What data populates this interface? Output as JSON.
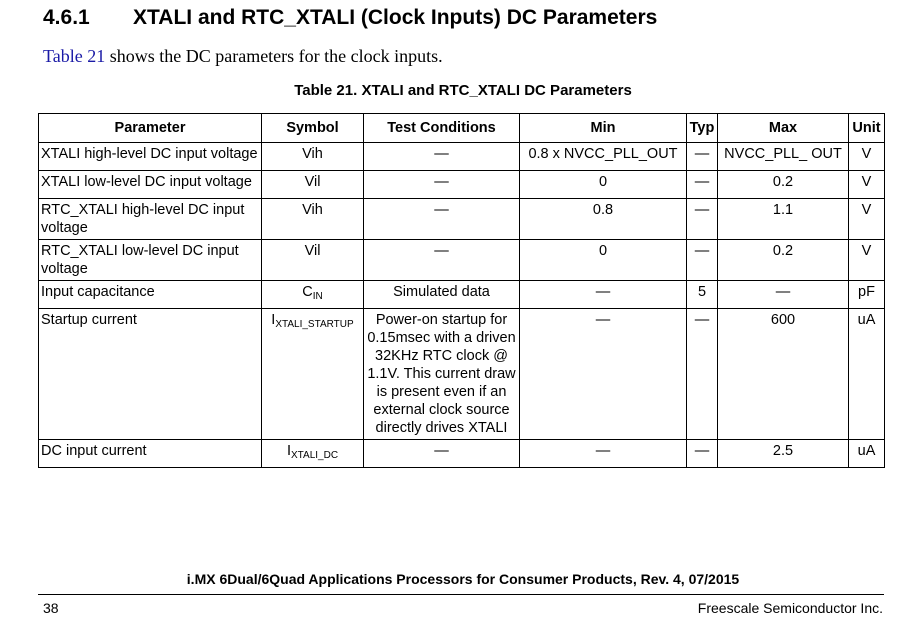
{
  "heading": {
    "number": "4.6.1",
    "title": "XTALI and RTC_XTALI (Clock Inputs) DC Parameters"
  },
  "intro": {
    "link": "Table 21",
    "text": " shows the DC parameters for the clock inputs."
  },
  "caption": "Table 21. XTALI and RTC_XTALI DC Parameters",
  "table": {
    "headers": [
      "Parameter",
      "Symbol",
      "Test Conditions",
      "Min",
      "Typ",
      "Max",
      "Unit"
    ],
    "rows": [
      {
        "param": "XTALI high-level DC input voltage",
        "sym": "Vih",
        "sub": "",
        "cond": "—",
        "min": "0.8 x NVCC_PLL_OUT",
        "typ": "—",
        "max": "NVCC_PLL_ OUT",
        "unit": "V"
      },
      {
        "param": "XTALI low-level DC input voltage",
        "sym": "Vil",
        "sub": "",
        "cond": "—",
        "min": "0",
        "typ": "—",
        "max": "0.2",
        "unit": "V"
      },
      {
        "param": "RTC_XTALI high-level DC input voltage",
        "sym": "Vih",
        "sub": "",
        "cond": "—",
        "min": "0.8",
        "typ": "—",
        "max": "1.1",
        "unit": "V"
      },
      {
        "param": "RTC_XTALI low-level DC input voltage",
        "sym": "Vil",
        "sub": "",
        "cond": "—",
        "min": "0",
        "typ": "—",
        "max": "0.2",
        "unit": "V"
      },
      {
        "param": "Input capacitance",
        "sym": "C",
        "sub": "IN",
        "cond": "Simulated data",
        "min": "—",
        "typ": "5",
        "max": "—",
        "unit": "pF"
      },
      {
        "param": "Startup current",
        "sym": "I",
        "sub": "XTALI_STARTUP",
        "cond": "Power-on startup for 0.15msec with a driven 32KHz RTC clock @ 1.1V. This current draw is present even if an external clock source directly drives XTALI",
        "min": "—",
        "typ": "—",
        "max": "600",
        "unit": "uA"
      },
      {
        "param": "DC input current",
        "sym": "I",
        "sub": "XTALI_DC",
        "cond": "—",
        "min": "—",
        "typ": "—",
        "max": "2.5",
        "unit": "uA"
      }
    ]
  },
  "footer": {
    "title": "i.MX 6Dual/6Quad  Applications Processors for Consumer Products, Rev. 4, 07/2015",
    "page": "38",
    "company": "Freescale Semiconductor Inc."
  }
}
